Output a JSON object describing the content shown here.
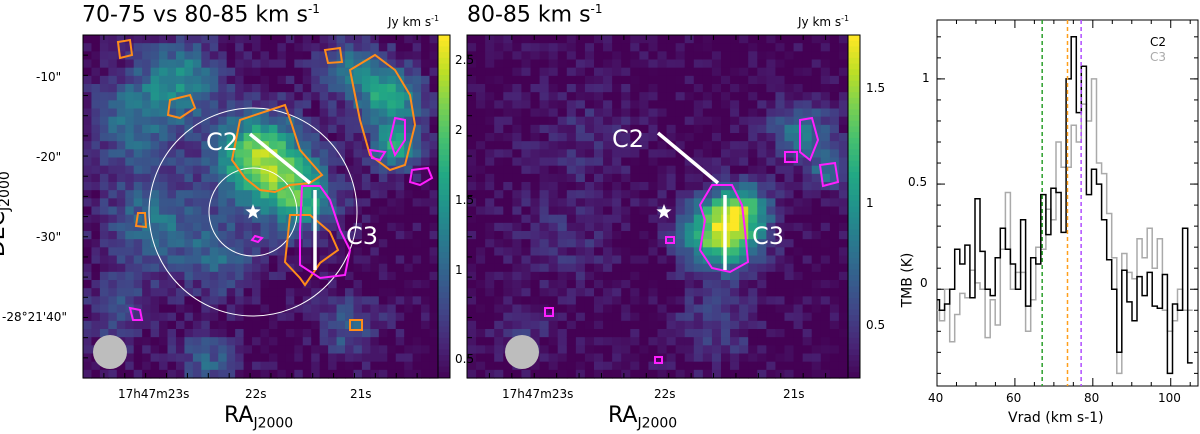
{
  "panels": [
    {
      "title": "70-75 vs 80-85 km s",
      "title_sup": "-1",
      "colorbar_unit": "Jy km s",
      "colorbar_unit_sup": "-1",
      "colorbar_ticks": [
        "2.5",
        "2",
        "1.5",
        "1",
        "0.5"
      ],
      "colorbar_values": [
        2.5,
        2,
        1.5,
        1,
        0.5
      ],
      "colorbar_range": [
        0.35,
        2.65
      ],
      "dec_ticks": [
        "-10\"",
        "-20\"",
        "-30\"",
        "-28°21'40\""
      ],
      "ra_ticks": [
        "17h47m23s",
        "22s",
        "21s"
      ],
      "ylabel": "DEC",
      "ylabel_sub": "J2000",
      "xlabel": "RA",
      "xlabel_sub": "J2000",
      "labels": [
        "C2",
        "C3"
      ]
    },
    {
      "title": "80-85 km s",
      "title_sup": "-1",
      "colorbar_unit": "Jy km s",
      "colorbar_unit_sup": "-1",
      "colorbar_ticks": [
        "1.5",
        "1",
        "0.5"
      ],
      "colorbar_values": [
        1.5,
        1,
        0.5
      ],
      "colorbar_range": [
        0.3,
        1.7
      ],
      "ra_ticks": [
        "17h47m23s",
        "22s",
        "21s"
      ],
      "xlabel": "RA",
      "xlabel_sub": "J2000",
      "labels": [
        "C2",
        "C3"
      ]
    }
  ],
  "chart_data": {
    "type": "line",
    "title": "",
    "xlabel": "Vrad (km s-1)",
    "ylabel": "TMB (K)",
    "xlim": [
      40,
      107
    ],
    "ylim": [
      -0.46,
      1.28
    ],
    "xticks": [
      "40",
      "60",
      "80",
      "100"
    ],
    "xtick_values": [
      40,
      60,
      80,
      100
    ],
    "yticks": [
      "0",
      "0.5",
      "1"
    ],
    "ytick_values": [
      0,
      0.5,
      1
    ],
    "vlines": [
      {
        "x": 67.0,
        "color": "#2ca02c"
      },
      {
        "x": 73.5,
        "color": "#ff9f1c"
      },
      {
        "x": 77.0,
        "color": "#b04dff"
      }
    ],
    "x": [
      40.0,
      41.3,
      42.6,
      43.9,
      45.2,
      46.5,
      47.8,
      49.1,
      50.4,
      51.7,
      53.0,
      54.3,
      55.6,
      56.9,
      58.2,
      59.5,
      60.8,
      62.1,
      63.4,
      64.7,
      66.0,
      67.3,
      68.6,
      69.9,
      71.2,
      72.5,
      73.8,
      75.1,
      76.4,
      77.7,
      79.0,
      80.3,
      81.6,
      82.9,
      84.2,
      85.5,
      86.8,
      88.1,
      89.4,
      90.7,
      92.0,
      93.3,
      94.6,
      95.9,
      97.2,
      98.5,
      99.8,
      101.1,
      102.4,
      103.7,
      105.0
    ],
    "series": [
      {
        "name": "C2",
        "color": "#000000",
        "values": [
          -0.05,
          -0.1,
          -0.07,
          0.0,
          0.19,
          0.12,
          0.21,
          -0.04,
          0.43,
          0.18,
          0.0,
          -0.03,
          0.15,
          0.29,
          0.19,
          0.12,
          0.0,
          0.33,
          -0.08,
          0.15,
          0.12,
          0.45,
          0.26,
          0.48,
          0.46,
          0.27,
          1.0,
          1.2,
          0.84,
          1.06,
          0.45,
          0.57,
          0.5,
          0.33,
          0.14,
          0.0,
          -0.3,
          0.09,
          -0.06,
          -0.15,
          0.06,
          -0.03,
          0.08,
          -0.08,
          -0.09,
          0.07,
          -0.4,
          -0.07,
          -0.1,
          0.29,
          -0.35
        ]
      },
      {
        "name": "C3",
        "color": "#aaaaaa",
        "values": [
          -0.1,
          -0.15,
          0.0,
          -0.25,
          -0.12,
          -0.02,
          -0.04,
          0.09,
          0.03,
          0.0,
          -0.23,
          -0.05,
          -0.17,
          0.19,
          0.46,
          0.0,
          0.08,
          0.08,
          -0.2,
          -0.05,
          0.2,
          0.19,
          0.38,
          0.33,
          0.7,
          0.58,
          0.58,
          0.78,
          0.7,
          0.88,
          0.8,
          1.0,
          0.6,
          0.55,
          0.36,
          0.15,
          -0.4,
          0.17,
          0.08,
          0.05,
          0.24,
          0.15,
          0.29,
          0.1,
          0.24,
          -0.1,
          -0.2,
          -0.15,
          0.0,
          -0.1,
          -0.1
        ]
      }
    ]
  }
}
